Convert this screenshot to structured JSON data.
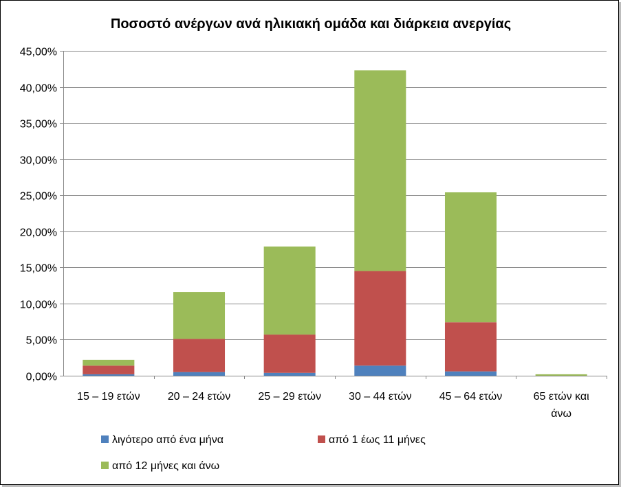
{
  "chart_data": {
    "type": "bar",
    "stacked": true,
    "title": "Ποσοστό ανέργων ανά ηλικιακή ομάδα και διάρκεια ανεργίας",
    "xlabel": "",
    "ylabel": "",
    "ylim": [
      0,
      45
    ],
    "yticks": [
      "0,00%",
      "5,00%",
      "10,00%",
      "15,00%",
      "20,00%",
      "25,00%",
      "30,00%",
      "35,00%",
      "40,00%",
      "45,00%"
    ],
    "grid": true,
    "legend_position": "bottom",
    "categories": [
      [
        "15 – 19  ετών"
      ],
      [
        "20 – 24 ετών"
      ],
      [
        "25 – 29 ετών"
      ],
      [
        "30 – 44 ετών"
      ],
      [
        "45 – 64 ετών"
      ],
      [
        "65 ετών και",
        "άνω"
      ]
    ],
    "series": [
      {
        "name": "λιγότερο από ένα μήνα",
        "color": "#4f81bd",
        "values": [
          0.2,
          0.5,
          0.4,
          1.4,
          0.6,
          0.0
        ]
      },
      {
        "name": "από 1 έως 11 μήνες",
        "color": "#c0504d",
        "values": [
          1.2,
          4.6,
          5.3,
          13.1,
          6.8,
          0.0
        ]
      },
      {
        "name": "από 12 μήνες και άνω",
        "color": "#9bbb59",
        "values": [
          0.8,
          6.5,
          12.2,
          27.8,
          18.0,
          0.2
        ]
      }
    ]
  }
}
